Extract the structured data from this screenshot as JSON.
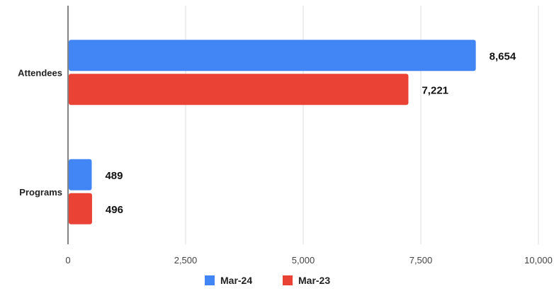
{
  "chart_data": {
    "type": "bar",
    "orientation": "horizontal",
    "categories": [
      "Attendees",
      "Programs"
    ],
    "series": [
      {
        "name": "Mar-24",
        "values": [
          8654,
          489
        ],
        "value_labels": [
          "8,654",
          "489"
        ],
        "color": "#4285F4"
      },
      {
        "name": "Mar-23",
        "values": [
          7221,
          496
        ],
        "value_labels": [
          "7,221",
          "496"
        ],
        "color": "#EA4335"
      }
    ],
    "xlim": [
      0,
      10000
    ],
    "x_ticks": [
      0,
      2500,
      5000,
      7500,
      10000
    ],
    "x_tick_labels": [
      "0",
      "2,500",
      "5,000",
      "7,500",
      "10,000"
    ],
    "grid": true,
    "legend_position": "bottom"
  }
}
